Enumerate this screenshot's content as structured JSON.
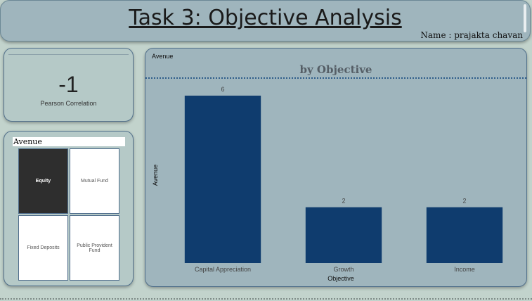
{
  "header": {
    "title": "Task 3: Objective Analysis",
    "author": "Name : prajakta chavan"
  },
  "kpi": {
    "value": "-1",
    "label": "Pearson Correlation"
  },
  "slicer": {
    "title": "Avenue",
    "options": [
      {
        "label": "Equity",
        "selected": true
      },
      {
        "label": "Mutual Fund",
        "selected": false
      },
      {
        "label": "Fixed Deposits",
        "selected": false
      },
      {
        "label": "Public Provident Fund",
        "selected": false
      }
    ]
  },
  "chart": {
    "tag": "Avenue",
    "title": "by Objective"
  },
  "chart_data": {
    "type": "bar",
    "categories": [
      "Capital Appreciation",
      "Growth",
      "Income"
    ],
    "values": [
      6,
      2,
      2
    ],
    "title": "by Objective",
    "xlabel": "Objective",
    "ylabel": "Avenue",
    "ylim": [
      0,
      6
    ],
    "grid": false,
    "bar_color": "#0f3c6e"
  }
}
